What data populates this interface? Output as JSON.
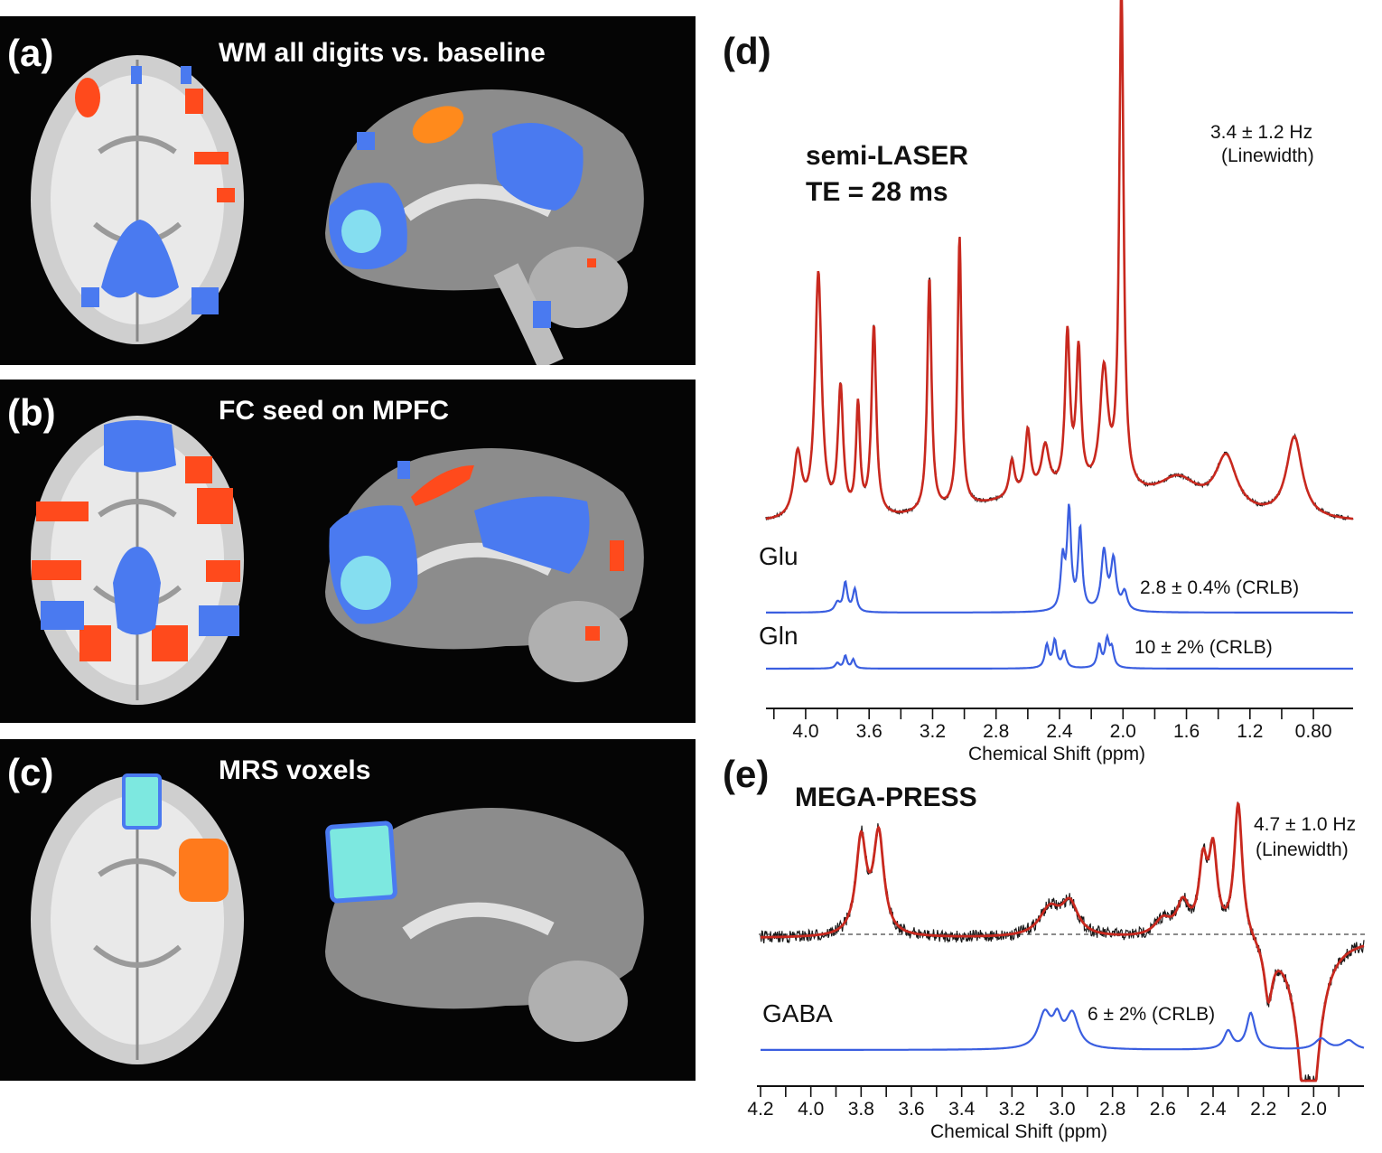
{
  "panels": [
    {
      "label": "(a)",
      "title": "WM all digits vs. baseline"
    },
    {
      "label": "(b)",
      "title": "FC seed on MPFC"
    },
    {
      "label": "(c)",
      "title": "MRS voxels"
    }
  ],
  "panel_d": {
    "label": "(d)",
    "sequence_line1": "semi-LASER",
    "sequence_line2": "TE = 28 ms",
    "linewidth_value": "3.4 ± 1.2 Hz",
    "linewidth_label": "(Linewidth)",
    "glu_label": "Glu",
    "glu_crlb": "2.8 ± 0.4% (CRLB)",
    "gln_label": "Gln",
    "gln_crlb": "10 ± 2% (CRLB)",
    "xlabel": "Chemical Shift (ppm)",
    "ticks": [
      "4.0",
      "3.6",
      "3.2",
      "2.8",
      "2.4",
      "2.0",
      "1.6",
      "1.2",
      "0.80"
    ]
  },
  "panel_e": {
    "label": "(e)",
    "sequence": "MEGA-PRESS",
    "linewidth_value": "4.7 ± 1.0 Hz",
    "linewidth_label": "(Linewidth)",
    "gaba_label": "GABA",
    "gaba_crlb": "6 ± 2% (CRLB)",
    "xlabel": "Chemical Shift (ppm)",
    "ticks": [
      "4.2",
      "4.0",
      "3.8",
      "3.6",
      "3.4",
      "3.2",
      "3.0",
      "2.8",
      "2.6",
      "2.4",
      "2.2",
      "2.0"
    ]
  },
  "colors": {
    "fit": "#c8281e",
    "data": "#1a1a1a",
    "basis": "#3a5ee0",
    "activation": "#ff4a1c",
    "deactivation": "#4a7af0",
    "voxel": "#7de8e0"
  }
}
